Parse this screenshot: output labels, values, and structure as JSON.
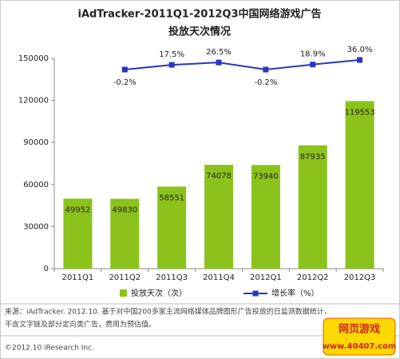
{
  "chart_data": {
    "type": "bar_line",
    "title": "iAdTracker-2011Q1-2012Q3中国网络游戏广告",
    "subtitle": "投放天次情况",
    "categories": [
      "2011Q1",
      "2011Q2",
      "2011Q3",
      "2011Q4",
      "2012Q1",
      "2012Q2",
      "2012Q3"
    ],
    "series": [
      {
        "name": "投放天次（次）",
        "color": "#8cc21c",
        "values": [
          49952,
          49830,
          58551,
          74078,
          73940,
          87935,
          119553
        ]
      },
      {
        "name": "增长率（%）",
        "color": "#2a35c4",
        "axis": "y2",
        "values": [
          null,
          -0.2,
          17.5,
          26.5,
          -0.2,
          18.9,
          36.0
        ],
        "value_labels": [
          null,
          "-0.2%",
          "17.5%",
          "26.5%",
          "-0.2%",
          "18.9%",
          "36.0%"
        ]
      }
    ],
    "ylim": [
      0,
      150000
    ],
    "yticks": [
      0,
      30000,
      60000,
      90000,
      120000,
      150000
    ],
    "y2lim": [
      -750,
      42
    ],
    "legend": "bottom",
    "source": [
      "来源：iAdTracker. 2012.10. 基于对中国200多家主流网络媒体品牌图形广告投放的日监测数据统计，",
      "不含文字链及部分定向类广告，费用为预估值。"
    ],
    "copyright": "©2012.10 iResearch Inc.",
    "watermark": [
      "网页游戏",
      "www.40407.com"
    ]
  }
}
